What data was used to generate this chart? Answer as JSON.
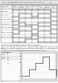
{
  "bg_color": "#f0f0f0",
  "page_bg": "#ffffff",
  "line_color": "#555555",
  "text_color": "#333333",
  "title_text": "8725.3  Heating mode operation time chart (Heat pump type only)",
  "note_marker": "(*2)",
  "page_num": "87",
  "chart_rows": [
    "Thermostat",
    "Compressor",
    "4-way valve",
    "Outdoor unit fan",
    "Indoor unit fan",
    "Electronic expansion valve",
    "Liquid bypass valve",
    "Defrost thermostat"
  ],
  "col_headers": [
    "Heating start",
    "Normal heating",
    "Defrost start",
    "Defrosting",
    "Defrost end",
    "Normal heating",
    "Heating stop"
  ],
  "timing_segments": {
    "Thermostat": [
      1,
      1,
      1,
      1,
      1,
      1,
      0
    ],
    "Compressor": [
      0,
      1,
      1,
      0,
      1,
      1,
      0
    ],
    "4-way valve": [
      0,
      1,
      1,
      1,
      1,
      1,
      0
    ],
    "Outdoor unit fan": [
      0,
      1,
      0,
      0,
      1,
      1,
      0
    ],
    "Indoor unit fan": [
      0,
      1,
      1,
      0,
      1,
      1,
      0
    ],
    "Electronic expansion valve": [
      0,
      1,
      1,
      0,
      1,
      1,
      0
    ],
    "Liquid bypass valve": [
      0,
      0,
      0,
      1,
      0,
      0,
      0
    ],
    "Defrost thermostat": [
      0,
      0,
      1,
      1,
      0,
      0,
      0
    ]
  },
  "note_lines": [
    "(*2) Outdoor unit fan control during heating mode operation",
    "Under conditions when the compressor is on during heating mode operation (except during defrosting and",
    "when the liquid bypass valve is on), the outdoor unit fan is controlled by means of input (CN2) indicating",
    "whether the contact of the heating pressure switch on the outdoor unit circuit board is open or closed",
    "(At the start of heating mode operation, the fan operates at HI speed.)"
  ],
  "circ_label": "Outdoor unit fan control flow (CN2 input)",
  "fan_speeds": [
    "HI",
    "MED",
    "LO",
    "OFF"
  ]
}
